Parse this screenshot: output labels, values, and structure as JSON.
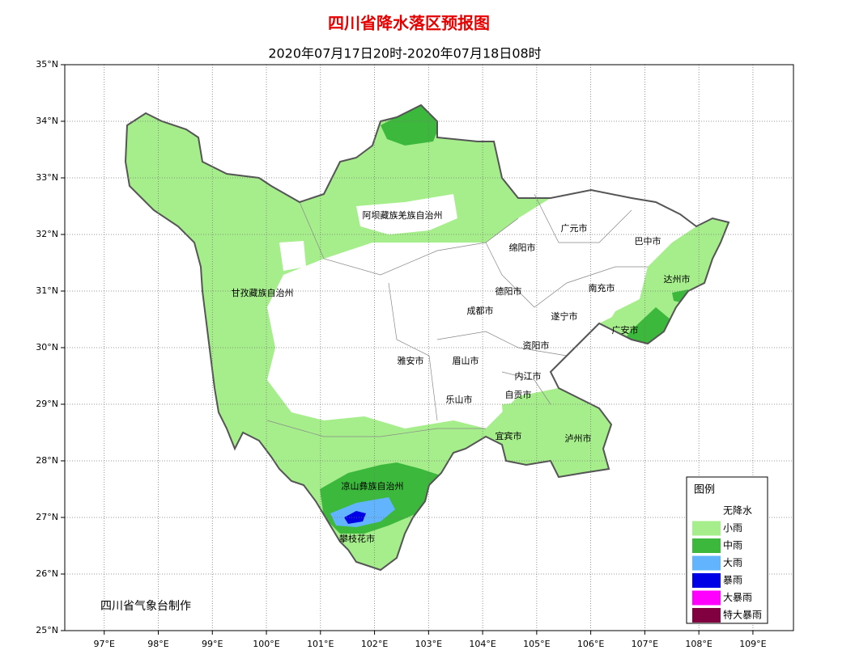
{
  "header": {
    "title": "四川省降水落区预报图",
    "subtitle": "2020年07月17日20时-2020年07月18日08时"
  },
  "map": {
    "xlim": [
      96.27,
      109.75
    ],
    "ylim": [
      25,
      35
    ],
    "grid": true,
    "xticks": [
      {
        "value": 97,
        "label": "97°E"
      },
      {
        "value": 98,
        "label": "98°E"
      },
      {
        "value": 99,
        "label": "99°E"
      },
      {
        "value": 100,
        "label": "100°E"
      },
      {
        "value": 101,
        "label": "101°E"
      },
      {
        "value": 102,
        "label": "102°E"
      },
      {
        "value": 103,
        "label": "103°E"
      },
      {
        "value": 104,
        "label": "104°E"
      },
      {
        "value": 105,
        "label": "105°E"
      },
      {
        "value": 106,
        "label": "106°E"
      },
      {
        "value": 107,
        "label": "107°E"
      },
      {
        "value": 108,
        "label": "108°E"
      },
      {
        "value": 109,
        "label": "109°E"
      }
    ],
    "yticks": [
      {
        "value": 25,
        "label": "25°N"
      },
      {
        "value": 26,
        "label": "26°N"
      },
      {
        "value": 27,
        "label": "27°N"
      },
      {
        "value": 28,
        "label": "28°N"
      },
      {
        "value": 29,
        "label": "29°N"
      },
      {
        "value": 30,
        "label": "30°N"
      },
      {
        "value": 31,
        "label": "31°N"
      },
      {
        "value": 32,
        "label": "32°N"
      },
      {
        "value": 33,
        "label": "33°N"
      },
      {
        "value": 34,
        "label": "34°N"
      },
      {
        "value": 35,
        "label": "35°N"
      }
    ],
    "regions": [
      "阿坝藏族羌族自治州",
      "广元市",
      "巴中市",
      "绵阳市",
      "甘孜藏族自治州",
      "达州市",
      "德阳市",
      "南充市",
      "成都市",
      "遂宁市",
      "广安市",
      "资阳市",
      "雅安市",
      "眉山市",
      "内江市",
      "自贡市",
      "乐山市",
      "宜宾市",
      "泸州市",
      "凉山彝族自治州",
      "攀枝花市"
    ]
  },
  "legend": {
    "title": "图例",
    "items": [
      {
        "label": "无降水",
        "color": "#ffffff"
      },
      {
        "label": "小雨",
        "color": "#a6ee8c"
      },
      {
        "label": "中雨",
        "color": "#3cb93c"
      },
      {
        "label": "大雨",
        "color": "#63b4ff"
      },
      {
        "label": "暴雨",
        "color": "#0000e6"
      },
      {
        "label": "大暴雨",
        "color": "#ff00ff"
      },
      {
        "label": "特大暴雨",
        "color": "#800040"
      }
    ]
  },
  "credit": "四川省气象台制作"
}
